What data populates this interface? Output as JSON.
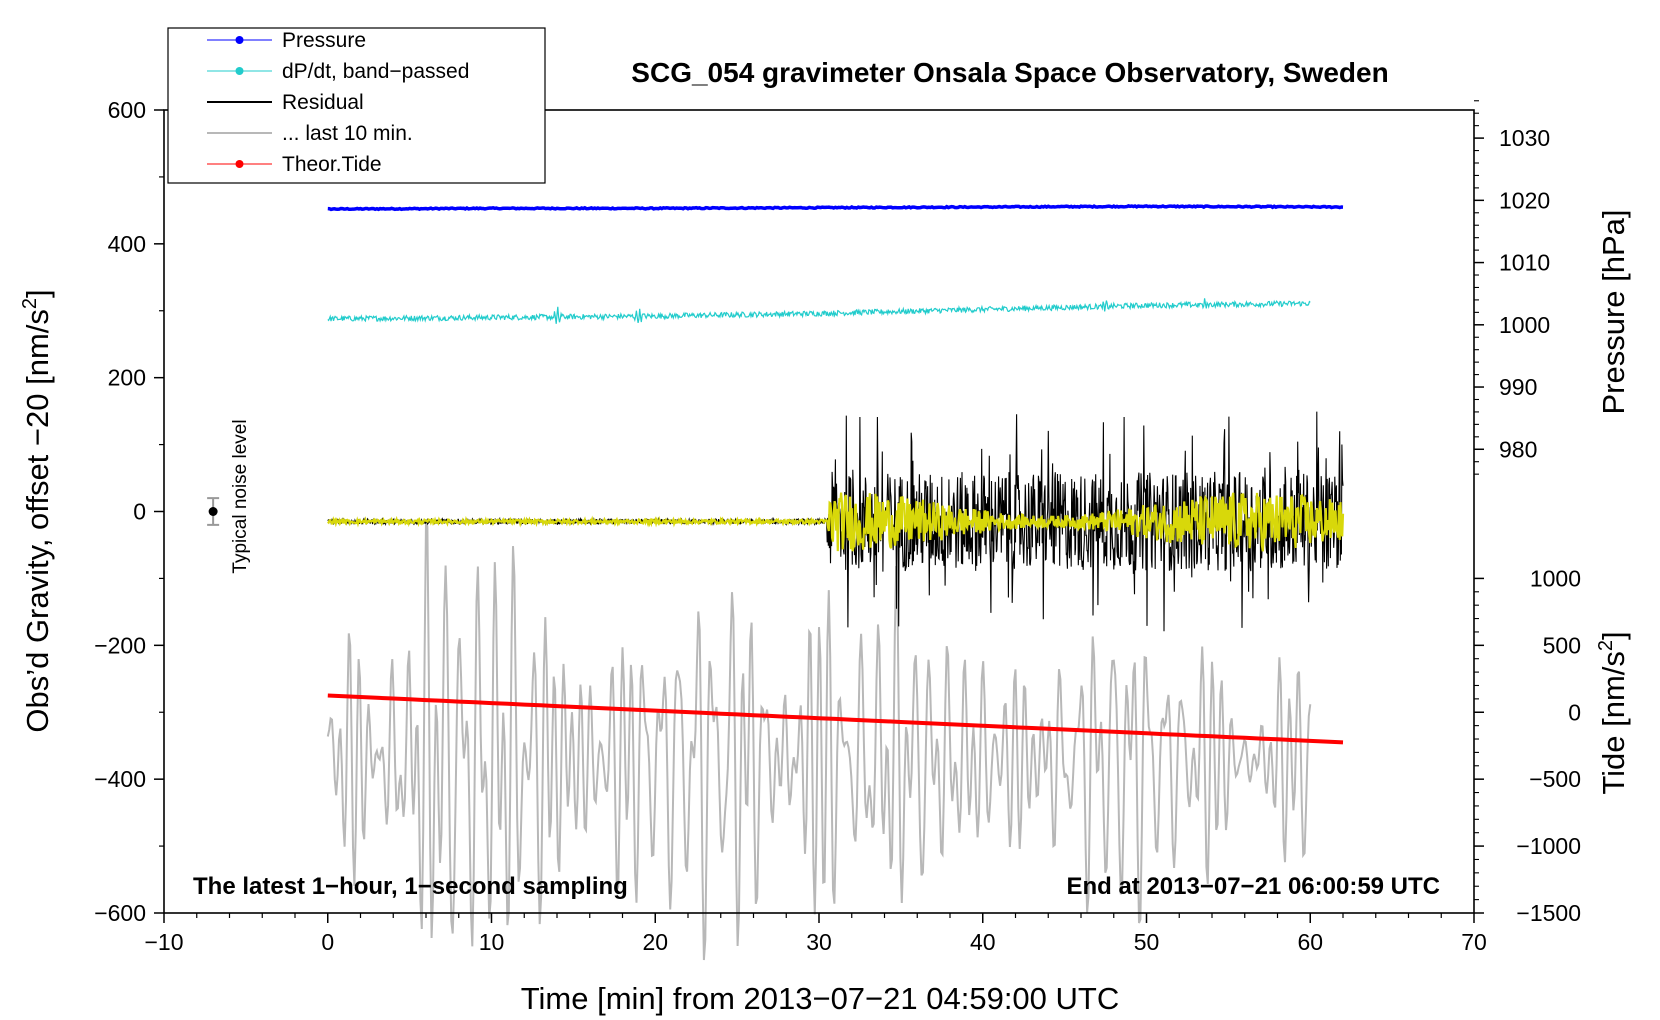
{
  "chart_data": {
    "type": "line",
    "title": "SCG_054 gravimeter Onsala Space Observatory, Sweden",
    "xlabel": "Time [min] from 2013−07−21 04:59:00 UTC",
    "ylabel": "Obs’d Gravity, offset −20 [nm/s²]",
    "ylabel_main": "Obs’d Gravity, offset −20 [nm/s",
    "ylabel_sup": "2",
    "ylabel_close": "]",
    "xlim": [
      -10,
      70
    ],
    "ylim": [
      -600,
      600
    ],
    "x_ticks": [
      -10,
      0,
      10,
      20,
      30,
      40,
      50,
      60,
      70
    ],
    "x_tick_labels": [
      "−10",
      "0",
      "10",
      "20",
      "30",
      "40",
      "50",
      "60",
      "70"
    ],
    "y_ticks": [
      -600,
      -400,
      -200,
      0,
      200,
      400,
      600
    ],
    "y_tick_labels": [
      "−600",
      "−400",
      "−200",
      "0",
      "200",
      "400",
      "600"
    ],
    "pressure_axis": {
      "label": "Pressure [hPa]",
      "ticks": [
        980,
        990,
        1000,
        1010,
        1020,
        1030
      ],
      "tick_labels": [
        "980",
        "990",
        "1000",
        "1010",
        "1020",
        "1030"
      ],
      "gravity_at_1000": 279,
      "gravity_per_hpa": 9.3
    },
    "tide_axis": {
      "label": "Tide [nm/s²]",
      "label_main": "Tide [nm/s",
      "label_sup": "2",
      "label_close": "]",
      "ticks": [
        -1500,
        -1000,
        -500,
        0,
        500,
        1000
      ],
      "tick_labels": [
        "−1500",
        "−1000",
        "−500",
        "0",
        "500",
        "1000"
      ],
      "gravity_at_0": -300,
      "gravity_per_unit": 0.2
    },
    "legend": [
      {
        "label": "Pressure",
        "color": "#0000ff",
        "marker": true
      },
      {
        "label": "dP/dt, band−passed",
        "color": "#22cccc",
        "marker": true
      },
      {
        "label": "Residual",
        "color": "#000000",
        "marker": false
      },
      {
        "label": "... last 10 min.",
        "color": "#b8b8b8",
        "marker": false
      },
      {
        "label": "Theor.Tide",
        "color": "#ff0000",
        "marker": true
      }
    ],
    "series": [
      {
        "name": "Pressure",
        "color": "#0000ff",
        "unit": "gravity",
        "x": [
          0,
          10,
          20,
          30,
          40,
          50,
          62
        ],
        "y": [
          452,
          453,
          453,
          454,
          455,
          456,
          455
        ]
      },
      {
        "name": "dP/dt, band−passed",
        "color": "#22cccc",
        "unit": "gravity",
        "x": [
          0,
          10,
          20,
          30,
          40,
          50,
          60
        ],
        "y": [
          288,
          290,
          292,
          296,
          302,
          308,
          311
        ],
        "noise_amplitude": 4,
        "spikes": [
          {
            "x": 14,
            "amp": 14
          },
          {
            "x": 19,
            "amp": 9
          },
          {
            "x": 47.5,
            "amp": 8
          },
          {
            "x": 53.5,
            "amp": 7
          }
        ]
      },
      {
        "name": "Residual",
        "color": "#000000",
        "unit": "gravity",
        "x": [
          0,
          30,
          30.5,
          62
        ],
        "y": [
          -15,
          -15,
          -15,
          -15
        ],
        "quiet_amplitude": 4,
        "active_from": 30.5,
        "active_amplitude": 165
      },
      {
        "name": "Residual smoothed",
        "color": "#d8d80a",
        "unit": "gravity",
        "x": [
          0,
          62
        ],
        "y": [
          -15,
          -15
        ],
        "quiet_amplitude": 3,
        "active_from": 30.5,
        "active_amplitude": 45
      },
      {
        "name": "... last 10 min.",
        "color": "#b8b8b8",
        "unit": "gravity",
        "x_range": [
          0,
          60
        ],
        "center": -370,
        "amplitude": 150
      },
      {
        "name": "Theor.Tide",
        "color": "#ff0000",
        "unit": "gravity",
        "x": [
          0,
          62
        ],
        "y": [
          -275,
          -345
        ]
      }
    ],
    "noise_marker": {
      "x": -7,
      "y": 0,
      "error": 20,
      "label": "Typical noise level"
    },
    "annotations": {
      "left": "The latest 1−hour, 1−second sampling",
      "right": "End at 2013−07−21 06:00:59 UTC"
    }
  }
}
